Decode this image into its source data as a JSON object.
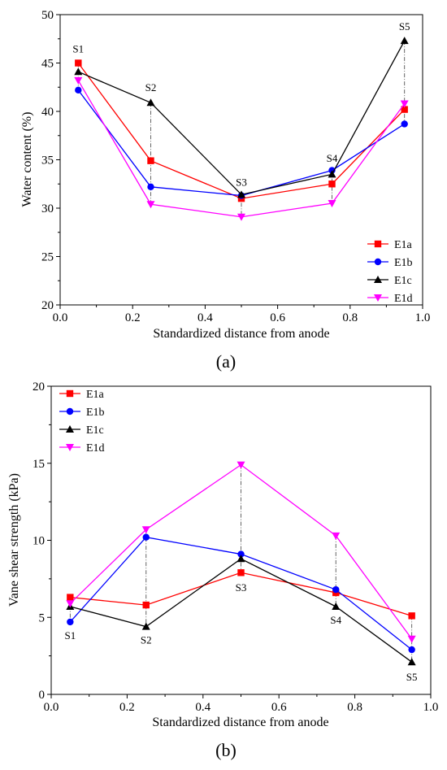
{
  "chart_data": [
    {
      "type": "line",
      "panel_label": "(a)",
      "xlabel": "Standardized distance from anode",
      "ylabel": "Water content (%)",
      "xlim": [
        0.0,
        1.0
      ],
      "ylim": [
        20,
        50
      ],
      "x_ticks": [
        "0.0",
        "0.2",
        "0.4",
        "0.6",
        "0.8",
        "1.0"
      ],
      "y_ticks": [
        "20",
        "25",
        "30",
        "35",
        "40",
        "45",
        "50"
      ],
      "legend_position": "bottom-right",
      "x": [
        0.05,
        0.25,
        0.5,
        0.75,
        0.95
      ],
      "series": [
        {
          "name": "E1a",
          "color": "#ff0000",
          "marker": "square",
          "values": [
            45.0,
            34.9,
            31.0,
            32.5,
            40.2
          ]
        },
        {
          "name": "E1b",
          "color": "#0000ff",
          "marker": "circle",
          "values": [
            42.2,
            32.2,
            31.3,
            33.9,
            38.7
          ]
        },
        {
          "name": "E1c",
          "color": "#000000",
          "marker": "triangle-up",
          "values": [
            44.1,
            40.9,
            31.4,
            33.5,
            47.3
          ]
        },
        {
          "name": "E1d",
          "color": "#ff00ff",
          "marker": "triangle-down",
          "values": [
            43.2,
            30.4,
            29.1,
            30.5,
            40.8
          ]
        }
      ],
      "annotations": [
        {
          "text": "S1",
          "x": 0.05,
          "y": 46.1
        },
        {
          "text": "S2",
          "x": 0.25,
          "y": 42.1
        },
        {
          "text": "S3",
          "x": 0.5,
          "y": 32.3
        },
        {
          "text": "S4",
          "x": 0.75,
          "y": 34.8
        },
        {
          "text": "S5",
          "x": 0.95,
          "y": 48.4
        }
      ]
    },
    {
      "type": "line",
      "panel_label": "(b)",
      "xlabel": "Standardized distance from anode",
      "ylabel": "Vane shear strength (kPa)",
      "xlim": [
        0.0,
        1.0
      ],
      "ylim": [
        0,
        20
      ],
      "x_ticks": [
        "0.0",
        "0.2",
        "0.4",
        "0.6",
        "0.8",
        "1.0"
      ],
      "y_ticks": [
        "0",
        "5",
        "10",
        "15",
        "20"
      ],
      "legend_position": "top-left",
      "x": [
        0.05,
        0.25,
        0.5,
        0.75,
        0.95
      ],
      "series": [
        {
          "name": "E1a",
          "color": "#ff0000",
          "marker": "square",
          "values": [
            6.3,
            5.8,
            7.9,
            6.6,
            5.1
          ]
        },
        {
          "name": "E1b",
          "color": "#0000ff",
          "marker": "circle",
          "values": [
            4.7,
            10.2,
            9.1,
            6.8,
            2.9
          ]
        },
        {
          "name": "E1c",
          "color": "#000000",
          "marker": "triangle-up",
          "values": [
            5.7,
            4.4,
            8.8,
            5.7,
            2.1
          ]
        },
        {
          "name": "E1d",
          "color": "#ff00ff",
          "marker": "triangle-down",
          "values": [
            5.9,
            10.7,
            14.9,
            10.3,
            3.6
          ]
        }
      ],
      "annotations": [
        {
          "text": "S1",
          "x": 0.05,
          "y": 3.6
        },
        {
          "text": "S2",
          "x": 0.25,
          "y": 3.3
        },
        {
          "text": "S3",
          "x": 0.5,
          "y": 6.7
        },
        {
          "text": "S4",
          "x": 0.75,
          "y": 4.6
        },
        {
          "text": "S5",
          "x": 0.95,
          "y": 0.9
        }
      ]
    }
  ]
}
